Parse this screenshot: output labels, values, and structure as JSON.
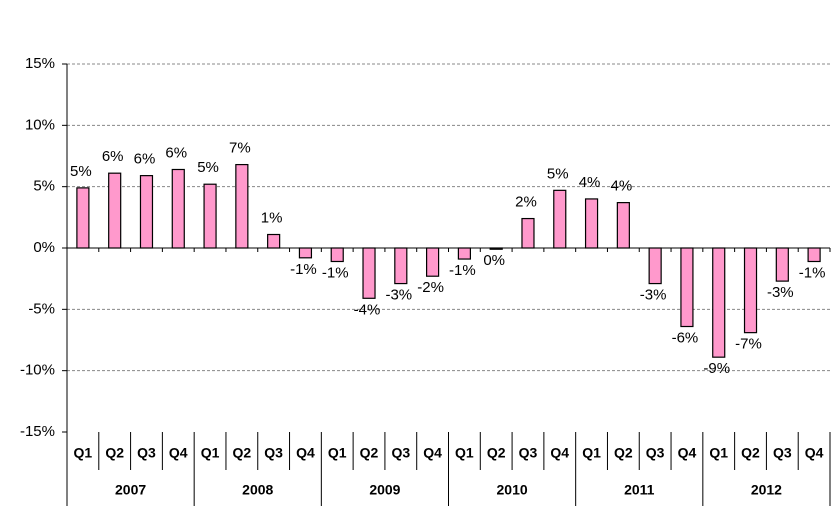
{
  "chart_data": {
    "type": "bar",
    "categories": [
      "Q1",
      "Q2",
      "Q3",
      "Q4",
      "Q1",
      "Q2",
      "Q3",
      "Q4",
      "Q1",
      "Q2",
      "Q3",
      "Q4",
      "Q1",
      "Q2",
      "Q3",
      "Q4",
      "Q1",
      "Q2",
      "Q3",
      "Q4",
      "Q1",
      "Q2",
      "Q3",
      "Q4"
    ],
    "category_groups": [
      "2007",
      "2008",
      "2009",
      "2010",
      "2011",
      "2012"
    ],
    "values": [
      4.9,
      6.1,
      5.9,
      6.4,
      5.2,
      6.8,
      1.1,
      -0.8,
      -1.1,
      -4.1,
      -2.9,
      -2.3,
      -0.9,
      -0.1,
      2.4,
      4.7,
      4.0,
      3.7,
      -2.9,
      -6.4,
      -8.9,
      -6.9,
      -2.7,
      -1.1
    ],
    "value_labels": [
      "5%",
      "6%",
      "6%",
      "6%",
      "5%",
      "7%",
      "1%",
      "-1%",
      "-1%",
      "-4%",
      "-3%",
      "-2%",
      "-1%",
      "0%",
      "2%",
      "5%",
      "4%",
      "4%",
      "-3%",
      "-6%",
      "-9%",
      "-7%",
      "-3%",
      "-1%"
    ],
    "color": "#ff99cc",
    "ylim": [
      -15,
      15
    ],
    "yticks": [
      {
        "value": -15,
        "label": "-15%"
      },
      {
        "value": -10,
        "label": "-10%"
      },
      {
        "value": -5,
        "label": "-5%"
      },
      {
        "value": 0,
        "label": "0%"
      },
      {
        "value": 5,
        "label": "5%"
      },
      {
        "value": 10,
        "label": "10%"
      },
      {
        "value": 15,
        "label": "15%"
      }
    ],
    "grid": true
  }
}
